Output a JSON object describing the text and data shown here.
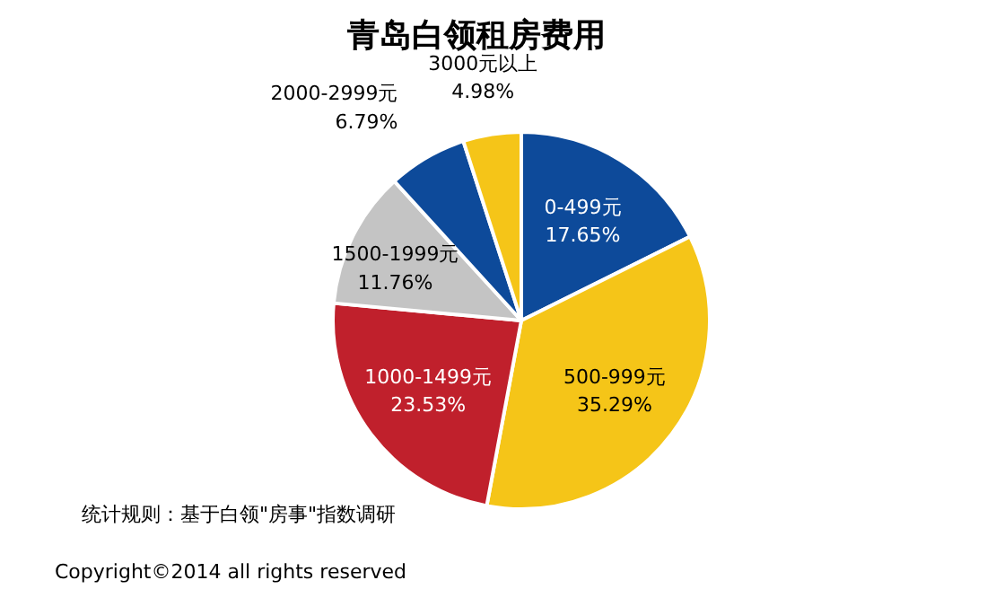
{
  "chart_data": {
    "type": "pie",
    "title": "青岛白领租房费用",
    "categories": [
      "0-499元",
      "500-999元",
      "1000-1499元",
      "1500-1999元",
      "2000-2999元",
      "3000元以上"
    ],
    "values": [
      17.65,
      35.29,
      23.53,
      11.76,
      6.79,
      4.98
    ],
    "value_labels": [
      "17.65%",
      "35.29%",
      "23.53%",
      "11.76%",
      "6.79%",
      "4.98%"
    ],
    "colors": [
      "#0d4a9a",
      "#f5c518",
      "#c0202c",
      "#c4c4c4",
      "#0d4a9a",
      "#f5c518"
    ],
    "annotations": [
      "统计规则：基于白领\"房事\"指数调研",
      "Copyright©2014 all rights reserved"
    ]
  }
}
